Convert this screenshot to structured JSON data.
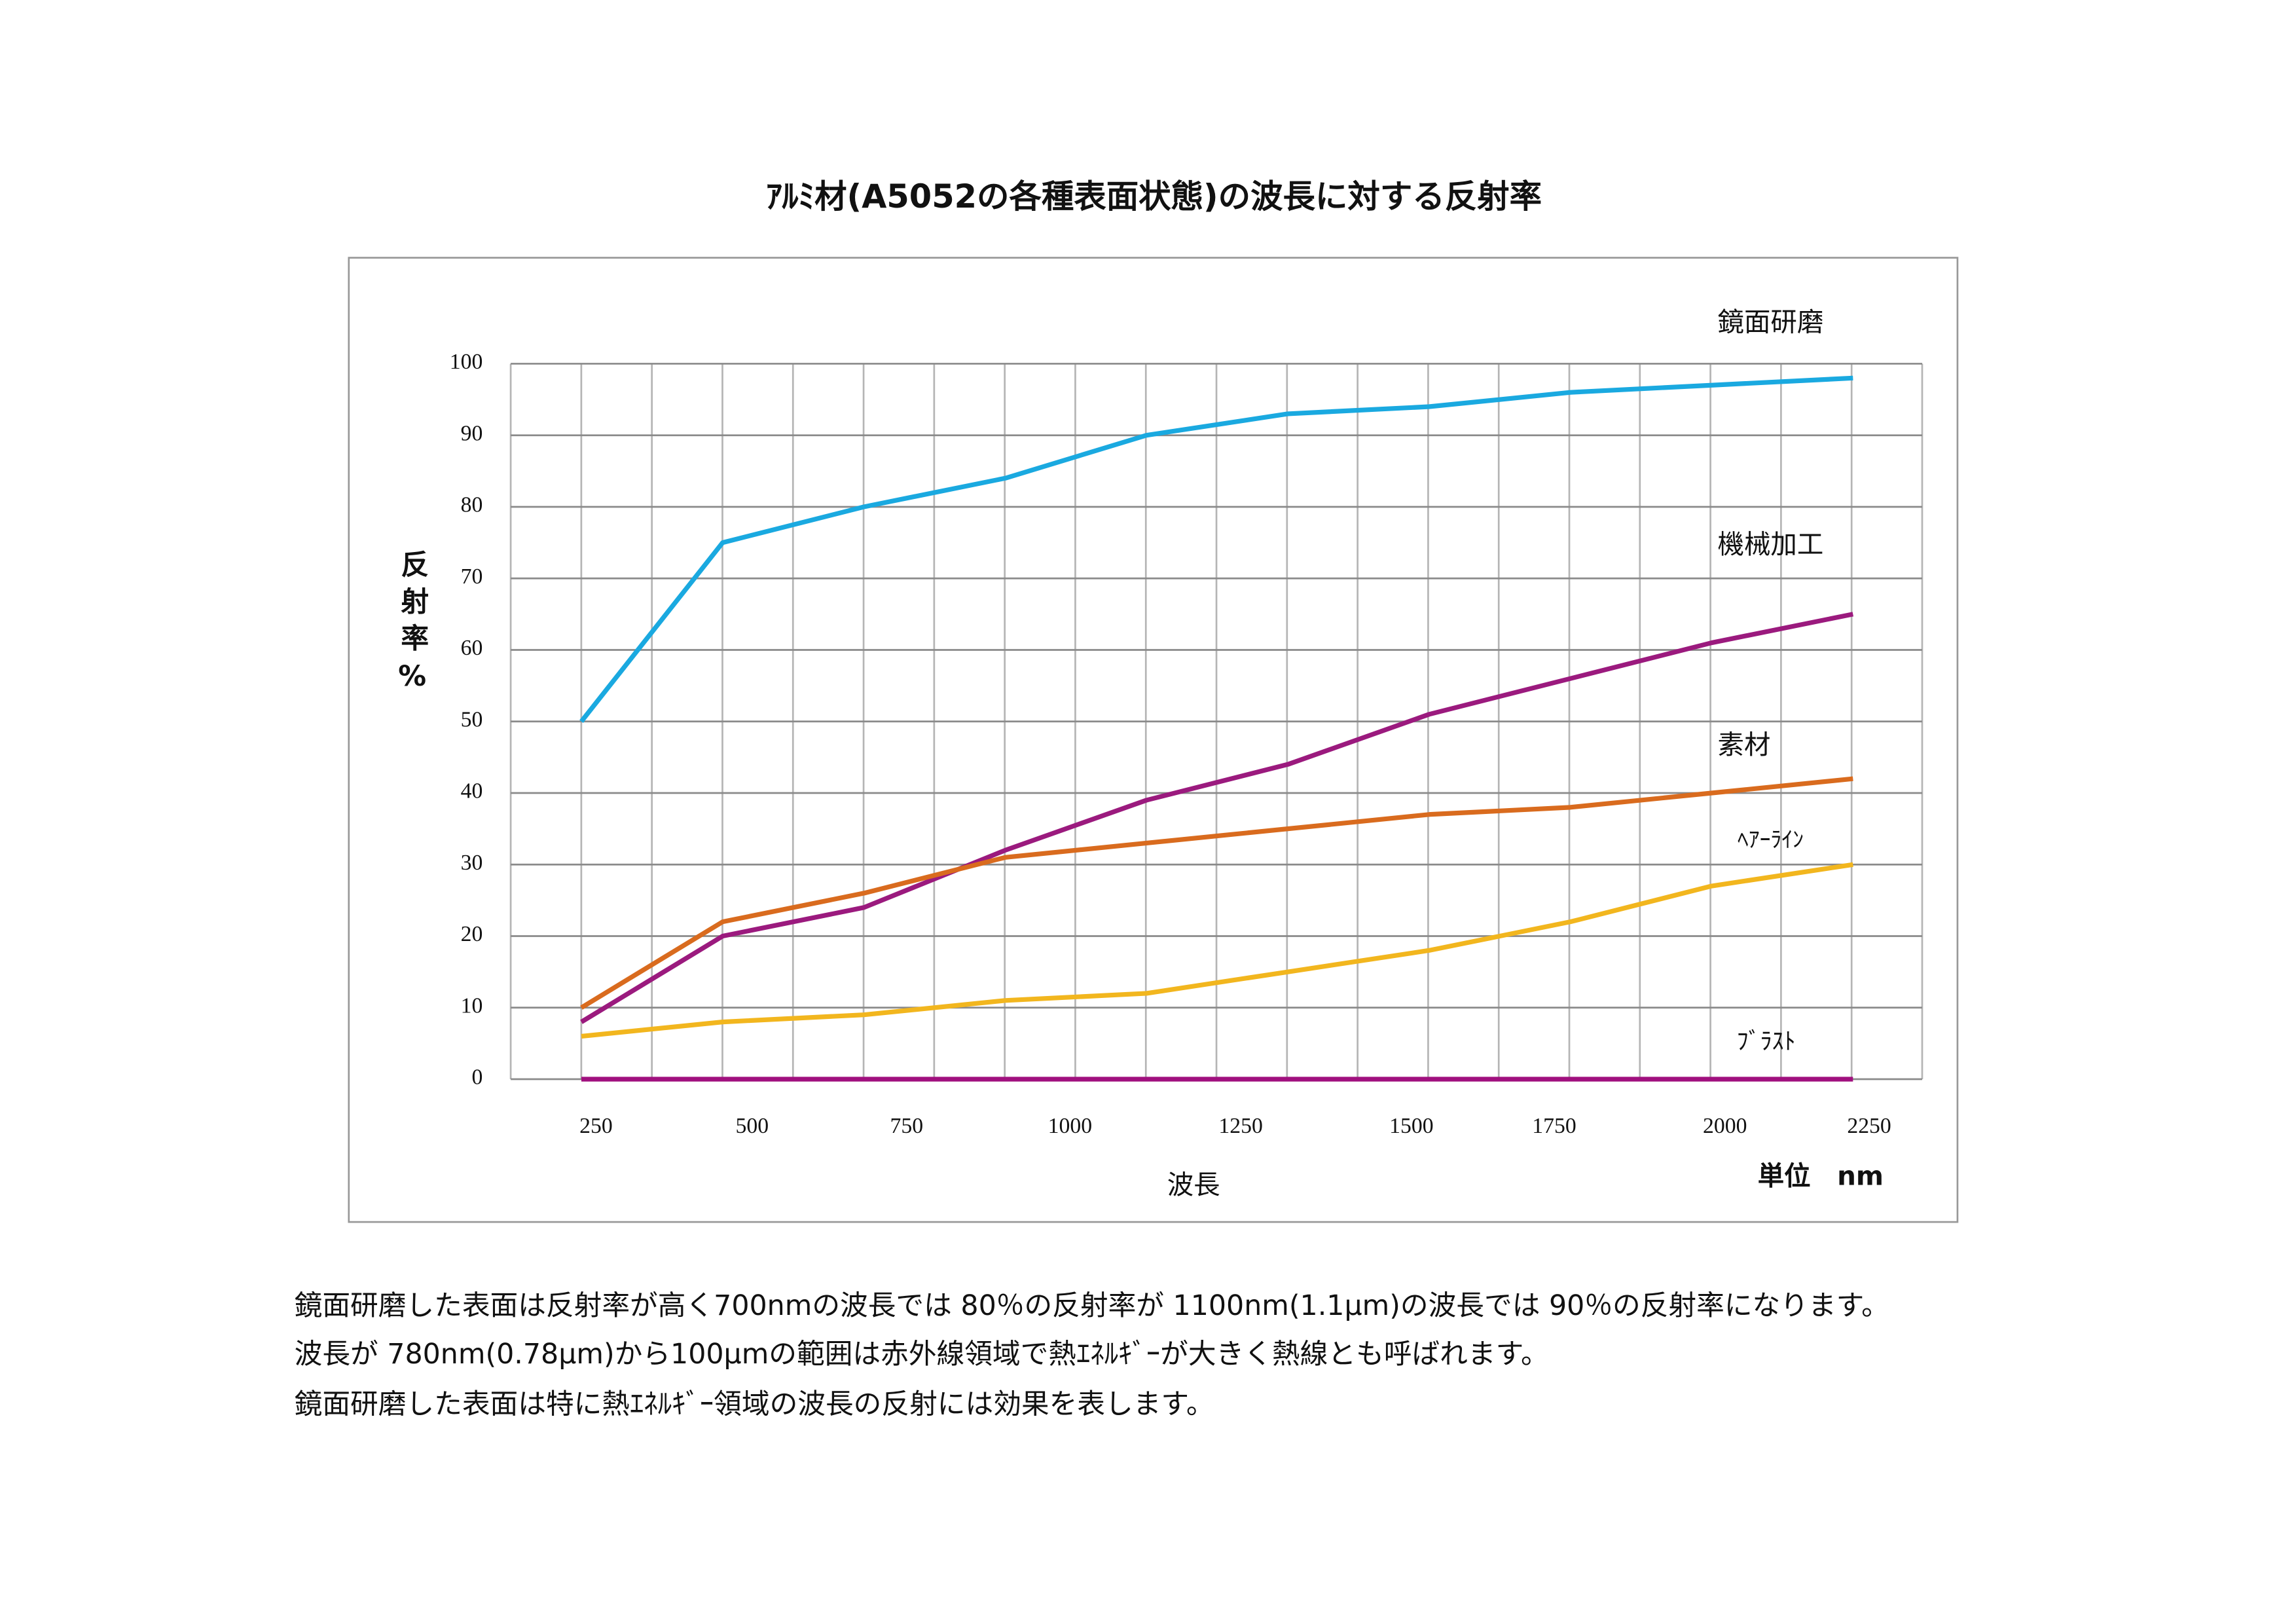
{
  "chart_data": {
    "type": "line",
    "title": "ｱﾙﾐ材(A5052の各種表面状態)の波長に対する反射率",
    "y_label": "反射率%",
    "x_label": "波長",
    "unit_label": "単位　nm",
    "xticks": [
      250,
      500,
      750,
      1000,
      1250,
      1500,
      1750,
      2000,
      2250
    ],
    "ylim": [
      0,
      100
    ],
    "yticks": [
      0,
      10,
      20,
      30,
      40,
      50,
      60,
      70,
      80,
      90,
      100
    ],
    "grid": true,
    "series": [
      {
        "name": "鏡面研磨",
        "color": "#1aa9e0",
        "values": [
          50,
          75,
          80,
          84,
          90,
          93,
          94,
          96,
          97,
          98
        ]
      },
      {
        "name": "機械加工",
        "color": "#9b1a7e",
        "values": [
          8,
          20,
          24,
          32,
          39,
          44,
          51,
          56,
          61,
          65
        ]
      },
      {
        "name": "素材",
        "color": "#d96b1e",
        "values": [
          10,
          22,
          26,
          31,
          33,
          35,
          37,
          38,
          40,
          42
        ]
      },
      {
        "name": "ﾍｱｰﾗｲﾝ",
        "color": "#f2b61e",
        "values": [
          6,
          8,
          9,
          11,
          12,
          15,
          18,
          22,
          27,
          30
        ]
      },
      {
        "name": "ﾌﾞﾗｽﾄ",
        "color": "#a0107e",
        "values": [
          0,
          0,
          0,
          0,
          0,
          0,
          0,
          0,
          0,
          0
        ]
      }
    ]
  },
  "notes": [
    "鏡面研磨した表面は反射率が高く700nmの波長では 80％の反射率が 1100nm(1.1μm)の波長では 90％の反射率になります。",
    "波長が 780nm(0.78μm)から100μmの範囲は赤外線領域で熱ｴﾈﾙｷﾞｰが大きく熱線とも呼ばれます。",
    "鏡面研磨した表面は特に熱ｴﾈﾙｷﾞｰ領域の波長の反射には効果を表します。"
  ]
}
